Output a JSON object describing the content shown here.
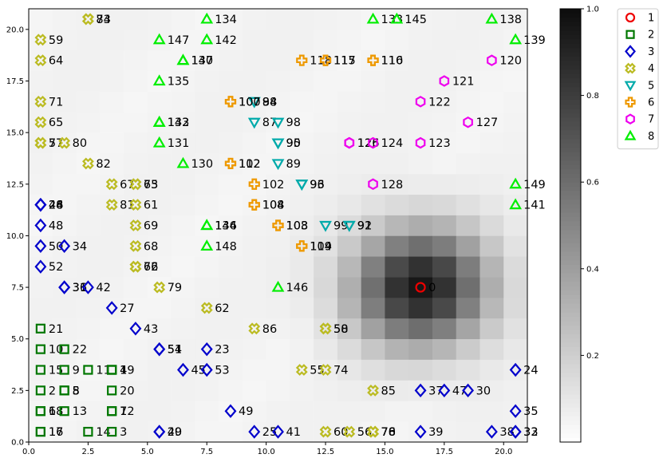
{
  "chart_data": {
    "type": "scatter",
    "title": "",
    "xlabel": "",
    "ylabel": "",
    "xlim": [
      0,
      21
    ],
    "ylim": [
      0,
      21
    ],
    "xticks": [
      "0.0",
      "2.5",
      "5.0",
      "7.5",
      "10.0",
      "12.5",
      "15.0",
      "17.5",
      "20.0"
    ],
    "yticks": [
      "0.0",
      "2.5",
      "5.0",
      "7.5",
      "10.0",
      "12.5",
      "15.0",
      "17.5",
      "20.0"
    ],
    "colorbar": {
      "min": 0,
      "max": 1,
      "ticks": [
        "0.2",
        "0.4",
        "0.6",
        "0.8",
        "1.0"
      ],
      "colormap": "Greys"
    },
    "heatmap": {
      "grid_cell": 1,
      "center": [
        16.5,
        7.5
      ],
      "sigma": 2.0,
      "peak": 0.85,
      "background": 0.035
    },
    "legend": {
      "placement": "outside-top-right",
      "entries": [
        {
          "label": "1",
          "marker": "circle",
          "color": "#ee0000"
        },
        {
          "label": "2",
          "marker": "square",
          "color": "#007700"
        },
        {
          "label": "3",
          "marker": "diamond",
          "color": "#0000cc"
        },
        {
          "label": "4",
          "marker": "x-fat",
          "color": "#bbbb22"
        },
        {
          "label": "5",
          "marker": "triangle-down",
          "color": "#00aaaa"
        },
        {
          "label": "6",
          "marker": "plus-fat",
          "color": "#ee9900"
        },
        {
          "label": "7",
          "marker": "hexagon",
          "color": "#ee00ee"
        },
        {
          "label": "8",
          "marker": "triangle-up",
          "color": "#00ee00"
        }
      ]
    },
    "series": [
      {
        "name": "1",
        "points": [
          {
            "x": 16.5,
            "y": 7.5,
            "label": "0"
          }
        ]
      },
      {
        "name": "2",
        "points": [
          {
            "x": 0.5,
            "y": 0.5,
            "label": "16"
          },
          {
            "x": 0.5,
            "y": 0.5,
            "label": "17"
          },
          {
            "x": 0.5,
            "y": 1.5,
            "label": "18"
          },
          {
            "x": 0.5,
            "y": 1.5,
            "label": "6"
          },
          {
            "x": 1.5,
            "y": 1.5,
            "label": "13"
          },
          {
            "x": 0.5,
            "y": 2.5,
            "label": "2"
          },
          {
            "x": 1.5,
            "y": 2.5,
            "label": "5"
          },
          {
            "x": 1.5,
            "y": 2.5,
            "label": "8"
          },
          {
            "x": 0.5,
            "y": 3.5,
            "label": "15"
          },
          {
            "x": 1.5,
            "y": 3.5,
            "label": "9"
          },
          {
            "x": 2.5,
            "y": 3.5,
            "label": "11"
          },
          {
            "x": 3.5,
            "y": 3.5,
            "label": "1"
          },
          {
            "x": 3.5,
            "y": 3.5,
            "label": "4"
          },
          {
            "x": 0.5,
            "y": 4.5,
            "label": "10"
          },
          {
            "x": 1.5,
            "y": 4.5,
            "label": "22"
          },
          {
            "x": 0.5,
            "y": 5.5,
            "label": "21"
          },
          {
            "x": 2.5,
            "y": 0.5,
            "label": "14"
          },
          {
            "x": 3.5,
            "y": 0.5,
            "label": "3"
          },
          {
            "x": 3.5,
            "y": 1.5,
            "label": "7"
          },
          {
            "x": 3.5,
            "y": 1.5,
            "label": "12"
          },
          {
            "x": 3.5,
            "y": 2.5,
            "label": "20"
          },
          {
            "x": 3.5,
            "y": 3.5,
            "label": "19"
          }
        ]
      },
      {
        "name": "3",
        "points": [
          {
            "x": 0.5,
            "y": 11.5,
            "label": "26"
          },
          {
            "x": 0.5,
            "y": 11.5,
            "label": "28"
          },
          {
            "x": 0.5,
            "y": 11.5,
            "label": "44"
          },
          {
            "x": 0.5,
            "y": 10.5,
            "label": "48"
          },
          {
            "x": 0.5,
            "y": 9.5,
            "label": "50"
          },
          {
            "x": 1.5,
            "y": 9.5,
            "label": "34"
          },
          {
            "x": 0.5,
            "y": 8.5,
            "label": "52"
          },
          {
            "x": 1.5,
            "y": 7.5,
            "label": "31"
          },
          {
            "x": 1.5,
            "y": 7.5,
            "label": "36"
          },
          {
            "x": 2.5,
            "y": 7.5,
            "label": "42"
          },
          {
            "x": 3.5,
            "y": 6.5,
            "label": "27"
          },
          {
            "x": 4.5,
            "y": 5.5,
            "label": "43"
          },
          {
            "x": 5.5,
            "y": 4.5,
            "label": "51"
          },
          {
            "x": 5.5,
            "y": 4.5,
            "label": "54"
          },
          {
            "x": 7.5,
            "y": 4.5,
            "label": "23"
          },
          {
            "x": 6.5,
            "y": 3.5,
            "label": "45"
          },
          {
            "x": 7.5,
            "y": 3.5,
            "label": "53"
          },
          {
            "x": 8.5,
            "y": 1.5,
            "label": "49"
          },
          {
            "x": 5.5,
            "y": 0.5,
            "label": "40"
          },
          {
            "x": 5.5,
            "y": 0.5,
            "label": "29"
          },
          {
            "x": 9.5,
            "y": 0.5,
            "label": "25"
          },
          {
            "x": 10.5,
            "y": 0.5,
            "label": "41"
          },
          {
            "x": 16.5,
            "y": 0.5,
            "label": "39"
          },
          {
            "x": 16.5,
            "y": 2.5,
            "label": "37"
          },
          {
            "x": 17.5,
            "y": 2.5,
            "label": "47"
          },
          {
            "x": 18.5,
            "y": 2.5,
            "label": "30"
          },
          {
            "x": 19.5,
            "y": 0.5,
            "label": "38"
          },
          {
            "x": 20.5,
            "y": 0.5,
            "label": "32"
          },
          {
            "x": 20.5,
            "y": 0.5,
            "label": "33"
          },
          {
            "x": 20.5,
            "y": 1.5,
            "label": "35"
          },
          {
            "x": 20.5,
            "y": 3.5,
            "label": "24"
          }
        ]
      },
      {
        "name": "4",
        "points": [
          {
            "x": 2.5,
            "y": 20.5,
            "label": "73"
          },
          {
            "x": 2.5,
            "y": 20.5,
            "label": "84"
          },
          {
            "x": 0.5,
            "y": 19.5,
            "label": "59"
          },
          {
            "x": 0.5,
            "y": 18.5,
            "label": "64"
          },
          {
            "x": 0.5,
            "y": 16.5,
            "label": "71"
          },
          {
            "x": 0.5,
            "y": 15.5,
            "label": "65"
          },
          {
            "x": 0.5,
            "y": 14.5,
            "label": "57"
          },
          {
            "x": 0.5,
            "y": 14.5,
            "label": "77"
          },
          {
            "x": 1.5,
            "y": 14.5,
            "label": "80"
          },
          {
            "x": 2.5,
            "y": 13.5,
            "label": "82"
          },
          {
            "x": 3.5,
            "y": 12.5,
            "label": "67"
          },
          {
            "x": 4.5,
            "y": 12.5,
            "label": "63"
          },
          {
            "x": 4.5,
            "y": 12.5,
            "label": "75"
          },
          {
            "x": 3.5,
            "y": 11.5,
            "label": "81"
          },
          {
            "x": 4.5,
            "y": 11.5,
            "label": "61"
          },
          {
            "x": 4.5,
            "y": 10.5,
            "label": "69"
          },
          {
            "x": 4.5,
            "y": 9.5,
            "label": "68"
          },
          {
            "x": 4.5,
            "y": 8.5,
            "label": "66"
          },
          {
            "x": 4.5,
            "y": 8.5,
            "label": "72"
          },
          {
            "x": 5.5,
            "y": 7.5,
            "label": "79"
          },
          {
            "x": 7.5,
            "y": 6.5,
            "label": "62"
          },
          {
            "x": 9.5,
            "y": 5.5,
            "label": "86"
          },
          {
            "x": 12.5,
            "y": 5.5,
            "label": "50"
          },
          {
            "x": 12.5,
            "y": 5.5,
            "label": "58"
          },
          {
            "x": 11.5,
            "y": 3.5,
            "label": "55"
          },
          {
            "x": 12.5,
            "y": 3.5,
            "label": "74"
          },
          {
            "x": 14.5,
            "y": 2.5,
            "label": "85"
          },
          {
            "x": 12.5,
            "y": 0.5,
            "label": "60"
          },
          {
            "x": 13.5,
            "y": 0.5,
            "label": "56"
          },
          {
            "x": 14.5,
            "y": 0.5,
            "label": "70"
          },
          {
            "x": 14.5,
            "y": 0.5,
            "label": "76"
          },
          {
            "x": 14.5,
            "y": 0.5,
            "label": "78"
          }
        ]
      },
      {
        "name": "5",
        "points": [
          {
            "x": 9.5,
            "y": 16.5,
            "label": "88"
          },
          {
            "x": 9.5,
            "y": 16.5,
            "label": "94"
          },
          {
            "x": 9.5,
            "y": 15.5,
            "label": "87"
          },
          {
            "x": 10.5,
            "y": 15.5,
            "label": "98"
          },
          {
            "x": 10.5,
            "y": 14.5,
            "label": "90"
          },
          {
            "x": 10.5,
            "y": 14.5,
            "label": "95"
          },
          {
            "x": 10.5,
            "y": 13.5,
            "label": "89"
          },
          {
            "x": 11.5,
            "y": 12.5,
            "label": "93"
          },
          {
            "x": 11.5,
            "y": 12.5,
            "label": "96"
          },
          {
            "x": 12.5,
            "y": 10.5,
            "label": "99"
          },
          {
            "x": 13.5,
            "y": 10.5,
            "label": "91"
          },
          {
            "x": 13.5,
            "y": 10.5,
            "label": "92"
          }
        ]
      },
      {
        "name": "6",
        "points": [
          {
            "x": 11.5,
            "y": 18.5,
            "label": "118"
          },
          {
            "x": 12.5,
            "y": 18.5,
            "label": "115"
          },
          {
            "x": 12.5,
            "y": 18.5,
            "label": "117"
          },
          {
            "x": 14.5,
            "y": 18.5,
            "label": "110"
          },
          {
            "x": 14.5,
            "y": 18.5,
            "label": "116"
          },
          {
            "x": 8.5,
            "y": 16.5,
            "label": "100"
          },
          {
            "x": 8.5,
            "y": 16.5,
            "label": "107"
          },
          {
            "x": 8.5,
            "y": 13.5,
            "label": "102"
          },
          {
            "x": 8.5,
            "y": 13.5,
            "label": "112"
          },
          {
            "x": 9.5,
            "y": 12.5,
            "label": "102"
          },
          {
            "x": 9.5,
            "y": 11.5,
            "label": "104"
          },
          {
            "x": 9.5,
            "y": 11.5,
            "label": "108"
          },
          {
            "x": 10.5,
            "y": 10.5,
            "label": "103"
          },
          {
            "x": 10.5,
            "y": 10.5,
            "label": "108"
          },
          {
            "x": 11.5,
            "y": 9.5,
            "label": "109"
          },
          {
            "x": 11.5,
            "y": 9.5,
            "label": "114"
          }
        ]
      },
      {
        "name": "7",
        "points": [
          {
            "x": 19.5,
            "y": 18.5,
            "label": "120"
          },
          {
            "x": 17.5,
            "y": 17.5,
            "label": "121"
          },
          {
            "x": 16.5,
            "y": 16.5,
            "label": "122"
          },
          {
            "x": 18.5,
            "y": 15.5,
            "label": "127"
          },
          {
            "x": 13.5,
            "y": 14.5,
            "label": "125"
          },
          {
            "x": 13.5,
            "y": 14.5,
            "label": "126"
          },
          {
            "x": 14.5,
            "y": 14.5,
            "label": "124"
          },
          {
            "x": 16.5,
            "y": 14.5,
            "label": "123"
          },
          {
            "x": 14.5,
            "y": 12.5,
            "label": "128"
          }
        ]
      },
      {
        "name": "8",
        "points": [
          {
            "x": 7.5,
            "y": 20.5,
            "label": "134"
          },
          {
            "x": 5.5,
            "y": 19.5,
            "label": "147"
          },
          {
            "x": 7.5,
            "y": 19.5,
            "label": "142"
          },
          {
            "x": 6.5,
            "y": 18.5,
            "label": "137"
          },
          {
            "x": 6.5,
            "y": 18.5,
            "label": "140"
          },
          {
            "x": 5.5,
            "y": 17.5,
            "label": "135"
          },
          {
            "x": 5.5,
            "y": 15.5,
            "label": "132"
          },
          {
            "x": 5.5,
            "y": 15.5,
            "label": "143"
          },
          {
            "x": 5.5,
            "y": 14.5,
            "label": "131"
          },
          {
            "x": 6.5,
            "y": 13.5,
            "label": "130"
          },
          {
            "x": 7.5,
            "y": 10.5,
            "label": "136"
          },
          {
            "x": 7.5,
            "y": 10.5,
            "label": "144"
          },
          {
            "x": 7.5,
            "y": 9.5,
            "label": "148"
          },
          {
            "x": 10.5,
            "y": 7.5,
            "label": "146"
          },
          {
            "x": 14.5,
            "y": 20.5,
            "label": "133"
          },
          {
            "x": 15.5,
            "y": 20.5,
            "label": "145"
          },
          {
            "x": 19.5,
            "y": 20.5,
            "label": "138"
          },
          {
            "x": 20.5,
            "y": 19.5,
            "label": "139"
          },
          {
            "x": 20.5,
            "y": 12.5,
            "label": "149"
          },
          {
            "x": 20.5,
            "y": 11.5,
            "label": "141"
          }
        ]
      }
    ]
  }
}
